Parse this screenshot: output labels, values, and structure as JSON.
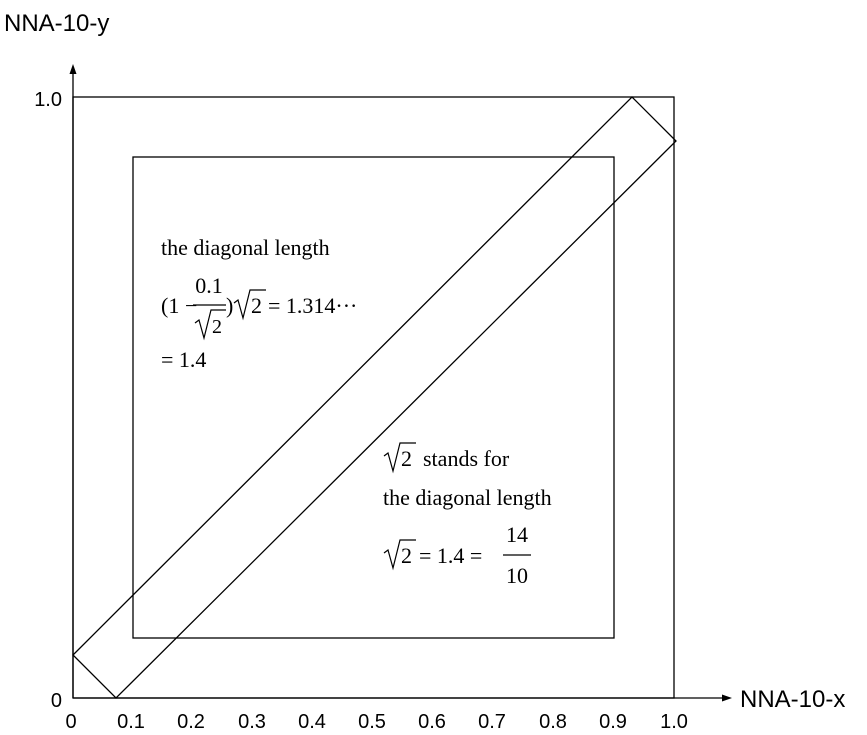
{
  "axes": {
    "x_label": "NNA-10-x",
    "y_label": "NNA-10-y",
    "y_ticks": [
      "1.0",
      "0"
    ],
    "x_ticks": [
      "0",
      "0.1",
      "0.2",
      "0.3",
      "0.4",
      "0.5",
      "0.6",
      "0.7",
      "0.8",
      "0.9",
      "1.0"
    ]
  },
  "annotation_left": {
    "line1": "the diagonal length",
    "open_paren": "(1",
    "minus": "−",
    "frac_num": "0.1",
    "frac_den_radicand": "2",
    "close_paren": ")",
    "sqrt_radicand": "2",
    "result": "= 1.314···",
    "line3": "= 1.4"
  },
  "annotation_right": {
    "line1_radicand": "2",
    "line1_rest": "stands for",
    "line2": "the diagonal length",
    "line3_radicand": "2",
    "line3_mid": "= 1.4 =",
    "frac_num": "14",
    "frac_den": "10"
  },
  "colors": {
    "stroke": "#000000",
    "text": "#000000"
  }
}
